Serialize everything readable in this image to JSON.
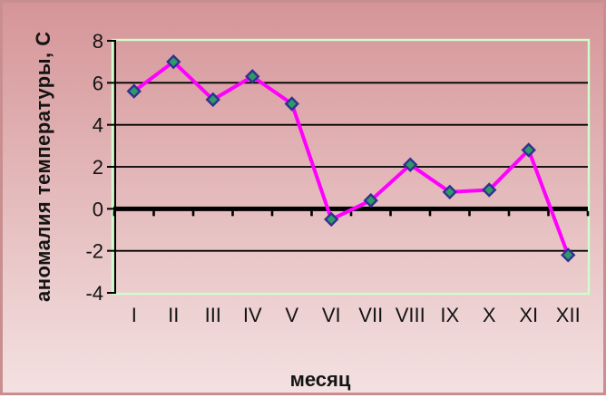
{
  "chart_data": {
    "type": "line",
    "categories": [
      "I",
      "II",
      "III",
      "IV",
      "V",
      "VI",
      "VII",
      "VIII",
      "IX",
      "X",
      "XI",
      "XII"
    ],
    "values": [
      5.6,
      7.0,
      5.2,
      6.3,
      5.0,
      -0.5,
      0.4,
      2.1,
      0.8,
      0.9,
      2.8,
      -2.2
    ],
    "xlabel": "месяц",
    "ylabel": "аномалия температуры, С",
    "ylim": [
      -4,
      8
    ],
    "yticks": [
      8,
      6,
      4,
      2,
      0,
      -2,
      -4
    ],
    "grid": "horizontal-black",
    "legend": "none",
    "marker": "diamond",
    "colors": {
      "line": "#ff00ff",
      "marker_fill": "#2f9a68",
      "marker_border": "#303090",
      "gridline": "#000000",
      "zero_axis": "#000000",
      "axis_line": "#000000",
      "plot_border": "#ccffcc",
      "text": "#141414",
      "background_top": "#d59598",
      "background_bottom": "#f4e1e1",
      "frame_border": "#c98f90"
    }
  }
}
